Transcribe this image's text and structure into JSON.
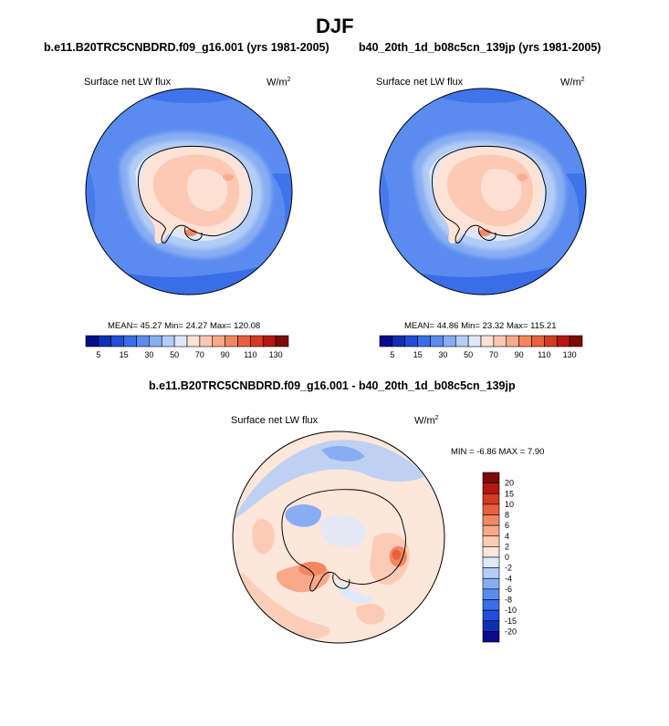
{
  "page": {
    "title": "DJF"
  },
  "palette": {
    "abs_colors": [
      "#0a0a8c",
      "#0f2fb3",
      "#1f4fd9",
      "#3a6ee8",
      "#5a8cf0",
      "#88adf2",
      "#b3cdf7",
      "#dde9fb",
      "#fde2d6",
      "#fbc7b0",
      "#f8a98a",
      "#f38762",
      "#e9603f",
      "#d43b22",
      "#b41810",
      "#7d0a05"
    ],
    "abs_tick_labels": [
      "5",
      "15",
      "30",
      "50",
      "70",
      "90",
      "110",
      "130"
    ],
    "diff_colors": [
      "#0a0a8c",
      "#0f2fb3",
      "#1f4fd9",
      "#3a6ee8",
      "#5a8cf0",
      "#88adf2",
      "#b3cdf7",
      "#dde9fb",
      "#fde6da",
      "#fbcbb5",
      "#f8a98a",
      "#f38762",
      "#e9603f",
      "#d43b22",
      "#b41810",
      "#7d0a05"
    ],
    "diff_tick_labels": [
      "20",
      "15",
      "10",
      "8",
      "6",
      "4",
      "2",
      "0",
      "-2",
      "-4",
      "-6",
      "-8",
      "-10",
      "-15",
      "-20"
    ]
  },
  "chart_data": [
    {
      "type": "heatmap",
      "panel": "left",
      "title": "b.e11.B20TRC5CNBDRD.f09_g16.001 (yrs 1981-2005)",
      "variable": "Surface net LW flux",
      "units": "W/m",
      "units_exp": "2",
      "stats": {
        "mean": "45.27",
        "min": "24.27",
        "max": "120.08"
      },
      "stats_labels": {
        "mean": "MEAN=",
        "min": "Min=",
        "max": "Max="
      },
      "colorbar_levels": [
        5,
        15,
        30,
        50,
        70,
        90,
        110,
        130
      ]
    },
    {
      "type": "heatmap",
      "panel": "right",
      "title": "b40_20th_1d_b08c5cn_139jp (yrs 1981-2005)",
      "variable": "Surface net LW flux",
      "units": "W/m",
      "units_exp": "2",
      "stats": {
        "mean": "44.86",
        "min": "23.32",
        "max": "115.21"
      },
      "stats_labels": {
        "mean": "MEAN=",
        "min": "Min=",
        "max": "Max="
      },
      "colorbar_levels": [
        5,
        15,
        30,
        50,
        70,
        90,
        110,
        130
      ]
    },
    {
      "type": "heatmap",
      "panel": "difference",
      "title": "b.e11.B20TRC5CNBDRD.f09_g16.001 - b40_20th_1d_b08c5cn_139jp",
      "variable": "Surface net LW flux",
      "units": "W/m",
      "units_exp": "2",
      "stats": {
        "min": "-6.86",
        "max": "7.90"
      },
      "stats_labels": {
        "min": "MIN =",
        "max": "MAX ="
      },
      "colorbar_levels": [
        -20,
        -15,
        -10,
        -8,
        -6,
        -4,
        -2,
        0,
        2,
        4,
        6,
        8,
        10,
        15,
        20
      ]
    }
  ]
}
